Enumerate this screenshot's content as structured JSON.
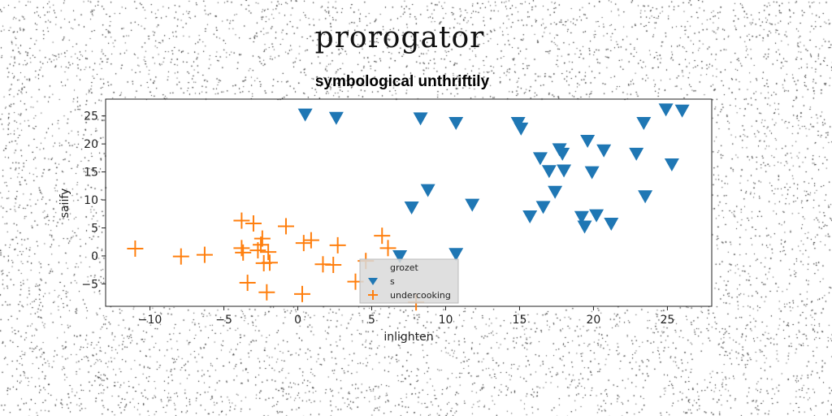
{
  "figure": {
    "title": "prorogator"
  },
  "chart_data": {
    "type": "scatter",
    "title": "symbological unthriftily",
    "xlabel": "inlighten",
    "ylabel": "saiify",
    "xlim": [
      -13,
      28
    ],
    "ylim": [
      -9,
      28
    ],
    "xticks": [
      -10,
      -5,
      0,
      5,
      10,
      15,
      20,
      25
    ],
    "yticks": [
      -5,
      0,
      5,
      10,
      15,
      20,
      25
    ],
    "grid": false,
    "legend_position": "lower center",
    "series": [
      {
        "name": "grozet",
        "marker": "none",
        "color": "#1f77b4",
        "x": [],
        "y": []
      },
      {
        "name": "s",
        "marker": "triangle-down",
        "color": "#1f77b4",
        "x": [
          0.5,
          2.6,
          8.3,
          10.7,
          14.9,
          15.1,
          16.4,
          17.0,
          17.7,
          17.9,
          18.0,
          19.6,
          20.7,
          22.9,
          23.4,
          24.9,
          26.0,
          25.3,
          8.8,
          7.7,
          11.8,
          15.7,
          16.6,
          17.4,
          19.2,
          19.4,
          20.2,
          21.2,
          23.5,
          6.9,
          10.7,
          19.9
        ],
        "y": [
          25.3,
          24.7,
          24.6,
          23.8,
          23.8,
          22.8,
          17.5,
          15.2,
          19.1,
          18.3,
          15.3,
          20.6,
          18.9,
          18.3,
          23.8,
          26.2,
          26.0,
          16.4,
          11.8,
          8.7,
          9.2,
          7.1,
          8.8,
          11.5,
          7.0,
          5.3,
          7.3,
          5.8,
          10.7,
          0.0,
          0.4,
          15.0
        ]
      },
      {
        "name": "undercooking",
        "marker": "plus",
        "color": "#ff7f0e",
        "x": [
          -11.0,
          -7.9,
          -6.3,
          -3.8,
          -3.0,
          -3.8,
          -3.7,
          -2.4,
          -2.5,
          -2.3,
          -1.9,
          -3.4,
          -2.1,
          -0.8,
          0.4,
          0.9,
          1.7,
          2.4,
          2.7,
          0.3,
          3.9,
          5.7,
          6.1,
          4.6,
          8.0,
          -2.0,
          -2.7
        ],
        "y": [
          1.3,
          -0.1,
          0.2,
          6.3,
          5.8,
          1.4,
          0.6,
          3.1,
          2.0,
          -1.3,
          -1.2,
          -4.8,
          -6.5,
          5.3,
          2.3,
          2.8,
          -1.5,
          -1.6,
          1.9,
          -6.8,
          -4.6,
          3.6,
          1.4,
          -0.9,
          -8.3,
          0.7,
          1.0
        ]
      }
    ]
  }
}
